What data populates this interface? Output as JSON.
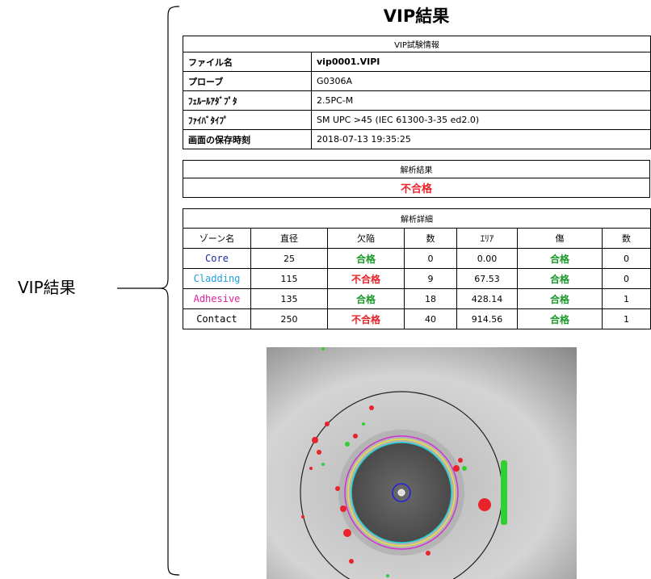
{
  "side_label": "VIP結果",
  "header": {
    "title": "VIP結果"
  },
  "info_table": {
    "title": "VIP試験情報",
    "rows": [
      [
        "ファイル名",
        "vip0001.VIPI"
      ],
      [
        "プローブ",
        "G0306A"
      ],
      [
        "ﾌｪﾙｰﾙｱﾀﾞﾌﾟﾀ",
        "2.5PC-M"
      ],
      [
        "ﾌｧｲﾊﾞﾀｲﾌﾟ",
        "SM UPC >45 (IEC 61300-3-35 ed2.0)"
      ],
      [
        "画面の保存時刻",
        "2018-07-13 19:35:25"
      ]
    ]
  },
  "result": {
    "title": "解析結果",
    "value": "不合格"
  },
  "detail": {
    "title": "解析詳細",
    "columns": [
      "ゾーン名",
      "直径",
      "欠陥",
      "数",
      "ｴﾘｱ",
      "傷",
      "数"
    ],
    "rows": [
      [
        "Core",
        25,
        "合格",
        0,
        "0.00",
        "合格",
        0
      ],
      [
        "Cladding",
        115,
        "不合格",
        9,
        "67.53",
        "合格",
        0
      ],
      [
        "Adhesive",
        135,
        "合格",
        18,
        "428.14",
        "合格",
        1
      ],
      [
        "Contact",
        250,
        "不合格",
        40,
        "914.56",
        "合格",
        1
      ]
    ]
  }
}
